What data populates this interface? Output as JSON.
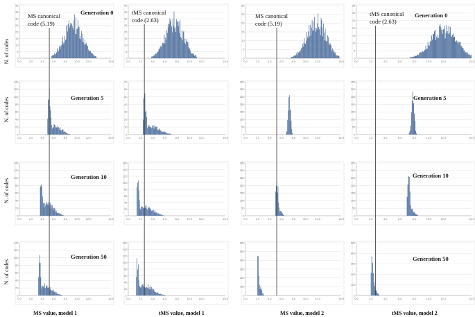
{
  "figure": {
    "panels_layout": "4 rows (generations) x 4 columns (models)",
    "bar_color": "#4a6c9b",
    "grid": true
  },
  "row_labels": [
    "Generation 0",
    "Generation 5",
    "Generation 10",
    "Generation 50"
  ],
  "y_axis_label": "N. of codes",
  "columns": [
    {
      "xlabel": "MS value, model 1",
      "canonical_label_line1": "MS canonical",
      "canonical_label_line2": "code (5.19)",
      "canonical_value": 5.19
    },
    {
      "xlabel": "tMS value, model 1",
      "canonical_label_line1": "tMS canonical",
      "canonical_label_line2": "code (2.63)",
      "canonical_value": 2.63
    },
    {
      "xlabel": "MS value, model 2",
      "canonical_label_line1": "MS canonical",
      "canonical_label_line2": "code (5.19)",
      "canonical_value": 5.19
    },
    {
      "xlabel": "tMS value, model 2",
      "canonical_label_line1": "tMS canonical",
      "canonical_label_line2": "code (2.63)",
      "canonical_value": 2.63
    }
  ],
  "x_ticks": [
    "0.0",
    "2.0",
    "4.0",
    "6.0",
    "8.0",
    "10.0",
    "12.0",
    "15.9"
  ],
  "chart_data": [
    {
      "type": "bar",
      "row": "Generation 0",
      "column": "MS value, model 1",
      "xlim": [
        0,
        15.9
      ],
      "ylim": [
        0,
        40
      ],
      "y_ticks": [
        0,
        5,
        10,
        15,
        20,
        25,
        30,
        35,
        40
      ],
      "peaks": [
        {
          "center": 9.4,
          "width": 1.6,
          "height": 34
        },
        {
          "center": 10.6,
          "width": 1.2,
          "height": 8
        }
      ],
      "range": [
        5.6,
        13.4
      ]
    },
    {
      "type": "bar",
      "row": "Generation 0",
      "column": "tMS value, model 1",
      "xlim": [
        0,
        15.9
      ],
      "ylim": [
        0,
        40
      ],
      "y_ticks": [
        0,
        5,
        10,
        15,
        20,
        25,
        30,
        35,
        40
      ],
      "peaks": [
        {
          "center": 7.6,
          "width": 1.5,
          "height": 36
        }
      ],
      "range": [
        3.8,
        11.2
      ]
    },
    {
      "type": "bar",
      "row": "Generation 0",
      "column": "MS value, model 2",
      "xlim": [
        0,
        15.9
      ],
      "ylim": [
        0,
        30
      ],
      "y_ticks": [
        0,
        5,
        10,
        15,
        20,
        25,
        30
      ],
      "peaks": [
        {
          "center": 11.8,
          "width": 1.6,
          "height": 26
        }
      ],
      "range": [
        7.6,
        15.6
      ]
    },
    {
      "type": "bar",
      "row": "Generation 0",
      "column": "tMS value, model 2",
      "xlim": [
        0,
        15.9
      ],
      "ylim": [
        0,
        35
      ],
      "y_ticks": [
        0,
        5,
        10,
        15,
        20,
        25,
        30,
        35
      ],
      "peaks": [
        {
          "center": 12.1,
          "width": 1.8,
          "height": 24
        }
      ],
      "range": [
        7.4,
        15.9
      ]
    },
    {
      "type": "bar",
      "row": "Generation 5",
      "column": "MS value, model 1",
      "xlim": [
        0,
        15.9
      ],
      "ylim": [
        0,
        140
      ],
      "y_ticks": [
        0,
        20,
        40,
        60,
        80,
        100,
        120,
        140
      ],
      "peaks": [
        {
          "center": 5.2,
          "width": 0.25,
          "height": 125
        },
        {
          "center": 6.2,
          "width": 1.1,
          "height": 30
        }
      ],
      "range": [
        4.9,
        11.5
      ]
    },
    {
      "type": "bar",
      "row": "Generation 5",
      "column": "tMS value, model 1",
      "xlim": [
        0,
        15.9
      ],
      "ylim": [
        0,
        70
      ],
      "y_ticks": [
        0,
        10,
        20,
        30,
        40,
        50,
        60,
        70
      ],
      "peaks": [
        {
          "center": 2.7,
          "width": 0.25,
          "height": 60
        },
        {
          "center": 3.8,
          "width": 1.4,
          "height": 14
        }
      ],
      "range": [
        2.4,
        10.5
      ]
    },
    {
      "type": "bar",
      "row": "Generation 5",
      "column": "MS value, model 2",
      "xlim": [
        0,
        15.9
      ],
      "ylim": [
        0,
        350
      ],
      "y_ticks": [
        0,
        50,
        100,
        150,
        200,
        250,
        300,
        350
      ],
      "peaks": [
        {
          "center": 7.3,
          "width": 0.2,
          "height": 300
        }
      ],
      "range": [
        6.8,
        8.2
      ]
    },
    {
      "type": "bar",
      "row": "Generation 5",
      "column": "tMS value, model 2",
      "xlim": [
        0,
        15.9
      ],
      "ylim": [
        0,
        350
      ],
      "y_ticks": [
        0,
        50,
        100,
        150,
        200,
        250,
        300,
        350
      ],
      "peaks": [
        {
          "center": 7.8,
          "width": 0.2,
          "height": 305
        }
      ],
      "range": [
        7.3,
        8.6
      ]
    },
    {
      "type": "bar",
      "row": "Generation 10",
      "column": "MS value, model 1",
      "xlim": [
        0,
        15.9
      ],
      "ylim": [
        0,
        140
      ],
      "y_ticks": [
        0,
        20,
        40,
        60,
        80,
        100,
        120,
        140
      ],
      "peaks": [
        {
          "center": 3.8,
          "width": 0.2,
          "height": 130
        },
        {
          "center": 4.8,
          "width": 1.2,
          "height": 40
        }
      ],
      "range": [
        3.6,
        10.5
      ]
    },
    {
      "type": "bar",
      "row": "Generation 10",
      "column": "tMS value, model 1",
      "xlim": [
        0,
        15.9
      ],
      "ylim": [
        0,
        160
      ],
      "y_ticks": [
        0,
        20,
        40,
        60,
        80,
        100,
        120,
        140,
        160
      ],
      "peaks": [
        {
          "center": 1.6,
          "width": 0.2,
          "height": 150
        },
        {
          "center": 2.7,
          "width": 1.3,
          "height": 35
        }
      ],
      "range": [
        1.4,
        9.5
      ]
    },
    {
      "type": "bar",
      "row": "Generation 10",
      "column": "MS value, model 2",
      "xlim": [
        0,
        15.9
      ],
      "ylim": [
        0,
        350
      ],
      "y_ticks": [
        0,
        50,
        100,
        150,
        200,
        250,
        300,
        350
      ],
      "peaks": [
        {
          "center": 5.2,
          "width": 0.25,
          "height": 285
        },
        {
          "center": 5.6,
          "width": 0.4,
          "height": 45
        }
      ],
      "range": [
        5.0,
        7.0
      ]
    },
    {
      "type": "bar",
      "row": "Generation 10",
      "column": "tMS value, model 2",
      "xlim": [
        0,
        15.9
      ],
      "ylim": [
        0,
        350
      ],
      "y_ticks": [
        0,
        50,
        100,
        150,
        200,
        250,
        300,
        350
      ],
      "peaks": [
        {
          "center": 7.2,
          "width": 0.2,
          "height": 300
        },
        {
          "center": 7.6,
          "width": 0.4,
          "height": 50
        }
      ],
      "range": [
        7.0,
        8.6
      ]
    },
    {
      "type": "bar",
      "row": "Generation 50",
      "column": "MS value, model 1",
      "xlim": [
        0,
        15.9
      ],
      "ylim": [
        0,
        140
      ],
      "y_ticks": [
        0,
        20,
        40,
        60,
        80,
        100,
        120,
        140
      ],
      "peaks": [
        {
          "center": 3.5,
          "width": 0.2,
          "height": 115
        },
        {
          "center": 4.5,
          "width": 1.2,
          "height": 35
        }
      ],
      "range": [
        3.3,
        9.5
      ]
    },
    {
      "type": "bar",
      "row": "Generation 50",
      "column": "tMS value, model 1",
      "xlim": [
        0,
        15.9
      ],
      "ylim": [
        0,
        160
      ],
      "y_ticks": [
        0,
        20,
        40,
        60,
        80,
        100,
        120,
        140,
        160
      ],
      "peaks": [
        {
          "center": 1.5,
          "width": 0.2,
          "height": 140
        },
        {
          "center": 2.6,
          "width": 1.4,
          "height": 40
        }
      ],
      "range": [
        1.3,
        8.8
      ]
    },
    {
      "type": "bar",
      "row": "Generation 50",
      "column": "MS value, model 2",
      "xlim": [
        0,
        15.9
      ],
      "ylim": [
        0,
        600
      ],
      "y_ticks": [
        0,
        100,
        200,
        300,
        400,
        500,
        600
      ],
      "peaks": [
        {
          "center": 2.1,
          "width": 0.15,
          "height": 520
        },
        {
          "center": 2.4,
          "width": 0.3,
          "height": 120
        }
      ],
      "range": [
        2.0,
        4.0
      ]
    },
    {
      "type": "bar",
      "row": "Generation 50",
      "column": "tMS value, model 2",
      "xlim": [
        0,
        15.9
      ],
      "ylim": [
        0,
        500
      ],
      "y_ticks": [
        0,
        100,
        200,
        300,
        400,
        500
      ],
      "peaks": [
        {
          "center": 2.2,
          "width": 0.15,
          "height": 440
        },
        {
          "center": 2.5,
          "width": 0.3,
          "height": 90
        }
      ],
      "range": [
        2.0,
        3.6
      ]
    }
  ]
}
